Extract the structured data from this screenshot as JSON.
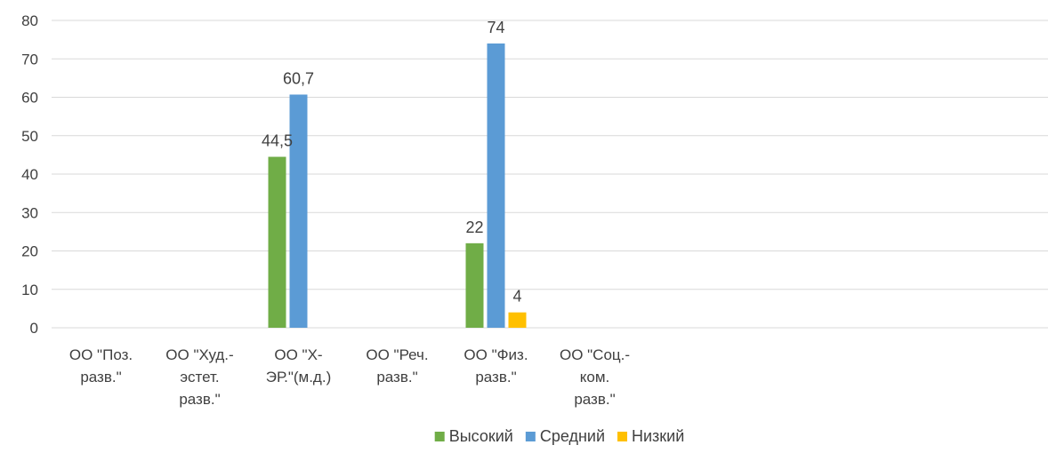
{
  "chart_data": {
    "type": "bar",
    "title": "",
    "xlabel": "",
    "ylabel": "",
    "ylim": [
      0,
      80
    ],
    "yticks": [
      0,
      10,
      20,
      30,
      40,
      50,
      60,
      70,
      80
    ],
    "grid": true,
    "legend_position": "bottom",
    "categories": [
      [
        "ОО \"Поз.",
        "разв.\""
      ],
      [
        "ОО \"Худ.-",
        "эстет.",
        "разв.\""
      ],
      [
        "ОО \"Х-",
        "ЭР.\"(м.д.)"
      ],
      [
        "ОО \"Реч.",
        "разв.\""
      ],
      [
        "ОО \"Физ.",
        "разв.\""
      ],
      [
        "ОО \"Соц.-",
        "ком.",
        "разв.\""
      ]
    ],
    "series": [
      {
        "name": "Высокий",
        "color": "#70ad47",
        "values": [
          null,
          null,
          44.5,
          null,
          22,
          null
        ],
        "labels": [
          null,
          null,
          "44,5",
          null,
          "22",
          null
        ]
      },
      {
        "name": "Средний",
        "color": "#5b9bd5",
        "values": [
          null,
          null,
          60.7,
          null,
          74,
          null
        ],
        "labels": [
          null,
          null,
          "60,7",
          null,
          "74",
          null
        ]
      },
      {
        "name": "Низкий",
        "color": "#ffc000",
        "values": [
          null,
          null,
          null,
          null,
          4,
          null
        ],
        "labels": [
          null,
          null,
          null,
          null,
          "4",
          null
        ]
      }
    ]
  }
}
